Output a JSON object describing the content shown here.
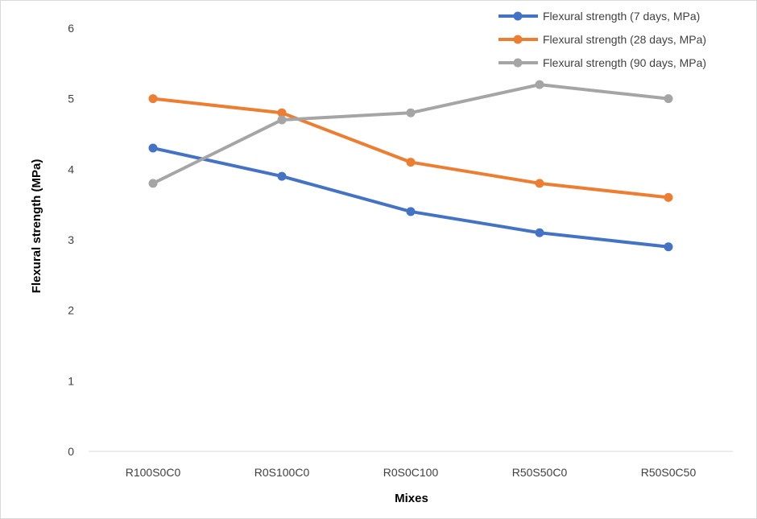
{
  "chart_data": {
    "type": "line",
    "title": "",
    "xlabel": "Mixes",
    "ylabel": "Flexural strength (MPa)",
    "categories": [
      "R100S0C0",
      "R0S100C0",
      "R0S0C100",
      "R50S50C0",
      "R50S0C50"
    ],
    "ylim": [
      0,
      6
    ],
    "yticks": [
      "0",
      "1",
      "2",
      "3",
      "4",
      "5",
      "6"
    ],
    "grid": false,
    "legend_position": "top-right",
    "series": [
      {
        "name": "Flexural strength (7 days, MPa)",
        "color": "#4472C4",
        "values": [
          4.3,
          3.9,
          3.4,
          3.1,
          2.9
        ]
      },
      {
        "name": "Flexural strength (28 days, MPa)",
        "color": "#ED7D31",
        "values": [
          5.0,
          4.8,
          4.1,
          3.8,
          3.6
        ]
      },
      {
        "name": "Flexural strength (90 days, MPa)",
        "color": "#A5A5A5",
        "values": [
          3.8,
          4.7,
          4.8,
          5.2,
          5.0
        ]
      }
    ]
  }
}
